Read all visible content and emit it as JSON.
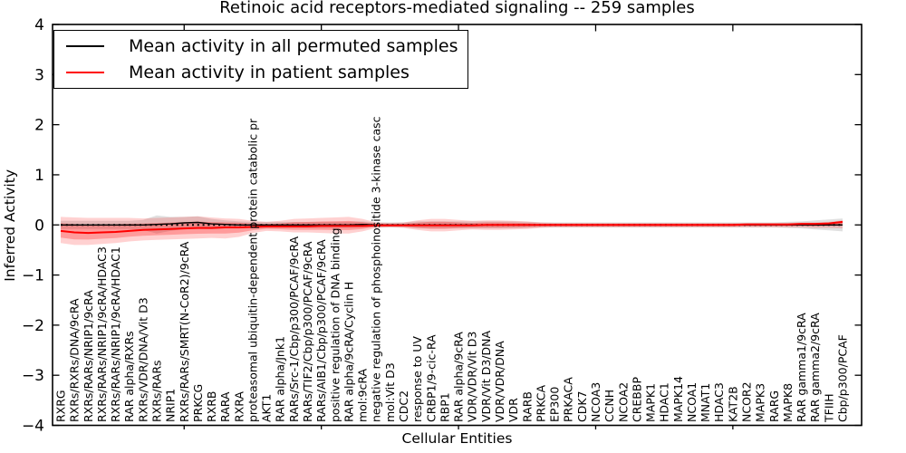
{
  "figure": {
    "title": "Retinoic acid receptors-mediated signaling -- 259 samples",
    "xlabel": "Cellular Entities",
    "ylabel": "Inferred Activity"
  },
  "legend": {
    "items": [
      {
        "label": "Mean activity in all permuted samples",
        "color": "#000000"
      },
      {
        "label": "Mean activity in patient samples",
        "color": "#ff0000"
      }
    ]
  },
  "chart_data": {
    "type": "line",
    "title": "Retinoic acid receptors-mediated signaling -- 259 samples",
    "xlabel": "Cellular Entities",
    "ylabel": "Inferred Activity",
    "ylim": [
      -4,
      4
    ],
    "yticks": [
      -4,
      -3,
      -2,
      -1,
      0,
      1,
      2,
      3,
      4
    ],
    "grid": false,
    "legend_position": "upper left",
    "x_major_tick_indices": [
      9,
      19,
      29,
      39,
      49
    ],
    "zero_reference_line": {
      "style": "dotted",
      "color": "#000000"
    },
    "categories": [
      "RXRG",
      "RXRs/RXRs/DNA/9cRA",
      "RXRs/RARs/NRIP1/9cRA",
      "RXRs/RARs/NRIP1/9cRA/HDAC3",
      "RXRs/RARs/NRIP1/9cRA/HDAC1",
      "RAR alpha/RXRs",
      "RXRs/VDR/DNA/Vit D3",
      "RXRs/RARs",
      "NRIP1",
      "RXRs/RARs/SMRT(N-CoR2)/9cRA",
      "PRKCG",
      "RXRB",
      "RARA",
      "RXRA",
      "proteasomal ubiquitin-dependent protein catabolic pr",
      "AKT1",
      "RAR alpha/Jnk1",
      "RARs/Src-1/Cbp/p300/PCAF/9cRA",
      "RARs/TIF2/Cbp/p300/PCAF/9cRA",
      "RARs/AIB1/Cbp/p300/PCAF/9cRA",
      "positive regulation of DNA binding",
      "RAR alpha/9cRA/Cyclin H",
      "mol:9cRA",
      "negative regulation of phosphoinositide 3-kinase casc",
      "mol:Vit D3",
      "CDC2",
      "response to UV",
      "CRBP1/9-cic-RA",
      "RBP1",
      "RAR alpha/9cRA",
      "VDR/VDR/Vit D3",
      "VDR/Vit D3/DNA",
      "VDR/VDR/DNA",
      "VDR",
      "RARB",
      "PRKCA",
      "EP300",
      "PRKACA",
      "CDK7",
      "NCOA3",
      "CCNH",
      "NCOA2",
      "CREBBP",
      "MAPK1",
      "HDAC1",
      "MAPK14",
      "NCOA1",
      "MNAT1",
      "HDAC3",
      "KAT2B",
      "NCOR2",
      "MAPK3",
      "RARG",
      "MAPK8",
      "RAR gamma1/9cRA",
      "RAR gamma2/9cRA",
      "TFIIH",
      "Cbp/p300/PCAF"
    ],
    "series": [
      {
        "name": "Mean activity in all permuted samples",
        "color": "#000000",
        "values": [
          0,
          0,
          0,
          0,
          0,
          0,
          0,
          0.01,
          0.02,
          0.04,
          0.05,
          0.02,
          0.01,
          0,
          0,
          0,
          0,
          0,
          0,
          0,
          0,
          0,
          0.01,
          0,
          0,
          0,
          0,
          0,
          0,
          0,
          0,
          0,
          0,
          0,
          0,
          0,
          0,
          0,
          0,
          0,
          0,
          0,
          0,
          0,
          0,
          0,
          0,
          0,
          0,
          0,
          0,
          0,
          0,
          0,
          0,
          0,
          0,
          0
        ]
      },
      {
        "name": "Mean activity in patient samples",
        "color": "#ff0000",
        "values": [
          -0.12,
          -0.15,
          -0.16,
          -0.15,
          -0.14,
          -0.12,
          -0.1,
          -0.09,
          -0.08,
          -0.07,
          -0.06,
          -0.06,
          -0.05,
          -0.05,
          -0.04,
          -0.03,
          -0.03,
          -0.03,
          -0.03,
          -0.02,
          -0.02,
          -0.02,
          -0.02,
          -0.01,
          -0.01,
          -0.01,
          -0.01,
          -0.01,
          -0.01,
          -0.01,
          -0.01,
          0,
          0,
          0,
          0,
          0,
          0,
          0,
          0,
          0,
          0,
          0,
          0,
          0,
          0,
          0,
          0,
          0,
          0,
          0,
          0.01,
          0.01,
          0.01,
          0.01,
          0.02,
          0.02,
          0.03,
          0.06
        ]
      }
    ],
    "bands": [
      {
        "series": "Mean activity in patient samples",
        "color": "#ff0000",
        "upper": [
          0.16,
          0.15,
          0.14,
          0.14,
          0.14,
          0.14,
          0.13,
          0.14,
          0.15,
          0.16,
          0.17,
          0.15,
          0.13,
          0.12,
          0.08,
          0.06,
          0.08,
          0.12,
          0.13,
          0.14,
          0.15,
          0.16,
          0.12,
          0.05,
          0.04,
          0.05,
          0.09,
          0.12,
          0.12,
          0.1,
          0.08,
          0.09,
          0.09,
          0.08,
          0.07,
          0.05,
          0.04,
          0.04,
          0.04,
          0.04,
          0.04,
          0.04,
          0.04,
          0.04,
          0.04,
          0.04,
          0.04,
          0.04,
          0.04,
          0.04,
          0.04,
          0.04,
          0.04,
          0.04,
          0.05,
          0.05,
          0.06,
          0.09
        ],
        "lower": [
          -0.36,
          -0.4,
          -0.4,
          -0.38,
          -0.36,
          -0.33,
          -0.31,
          -0.3,
          -0.29,
          -0.28,
          -0.27,
          -0.26,
          -0.27,
          -0.24,
          -0.16,
          -0.12,
          -0.13,
          -0.15,
          -0.15,
          -0.16,
          -0.17,
          -0.17,
          -0.13,
          -0.06,
          -0.05,
          -0.06,
          -0.1,
          -0.13,
          -0.13,
          -0.11,
          -0.09,
          -0.1,
          -0.1,
          -0.09,
          -0.08,
          -0.06,
          -0.05,
          -0.05,
          -0.05,
          -0.05,
          -0.05,
          -0.05,
          -0.05,
          -0.05,
          -0.05,
          -0.05,
          -0.05,
          -0.05,
          -0.05,
          -0.05,
          -0.05,
          -0.05,
          -0.05,
          -0.05,
          -0.05,
          -0.06,
          -0.06,
          -0.07
        ]
      },
      {
        "series": "Mean activity in all permuted samples",
        "color": "#999999",
        "upper": [
          0.08,
          0.08,
          0.08,
          0.08,
          0.08,
          0.08,
          0.1,
          0.19,
          0.16,
          0.16,
          0.17,
          0.12,
          0.09,
          0.07,
          0.06,
          0.06,
          0.06,
          0.06,
          0.06,
          0.06,
          0.06,
          0.06,
          0.07,
          0.05,
          0.05,
          0.05,
          0.07,
          0.07,
          0.07,
          0.07,
          0.07,
          0.07,
          0.07,
          0.07,
          0.06,
          0.05,
          0.05,
          0.05,
          0.05,
          0.05,
          0.05,
          0.05,
          0.05,
          0.05,
          0.05,
          0.05,
          0.05,
          0.05,
          0.05,
          0.05,
          0.05,
          0.05,
          0.05,
          0.06,
          0.07,
          0.09,
          0.11,
          0.13
        ],
        "lower": [
          -0.08,
          -0.08,
          -0.08,
          -0.08,
          -0.08,
          -0.08,
          -0.1,
          -0.17,
          -0.12,
          -0.08,
          -0.07,
          -0.08,
          -0.07,
          -0.07,
          -0.06,
          -0.06,
          -0.06,
          -0.06,
          -0.06,
          -0.06,
          -0.06,
          -0.06,
          -0.05,
          -0.05,
          -0.05,
          -0.05,
          -0.07,
          -0.07,
          -0.07,
          -0.07,
          -0.07,
          -0.07,
          -0.07,
          -0.07,
          -0.06,
          -0.05,
          -0.05,
          -0.05,
          -0.05,
          -0.05,
          -0.05,
          -0.05,
          -0.05,
          -0.05,
          -0.05,
          -0.05,
          -0.05,
          -0.05,
          -0.05,
          -0.05,
          -0.05,
          -0.05,
          -0.05,
          -0.06,
          -0.07,
          -0.09,
          -0.11,
          -0.13
        ]
      }
    ]
  }
}
